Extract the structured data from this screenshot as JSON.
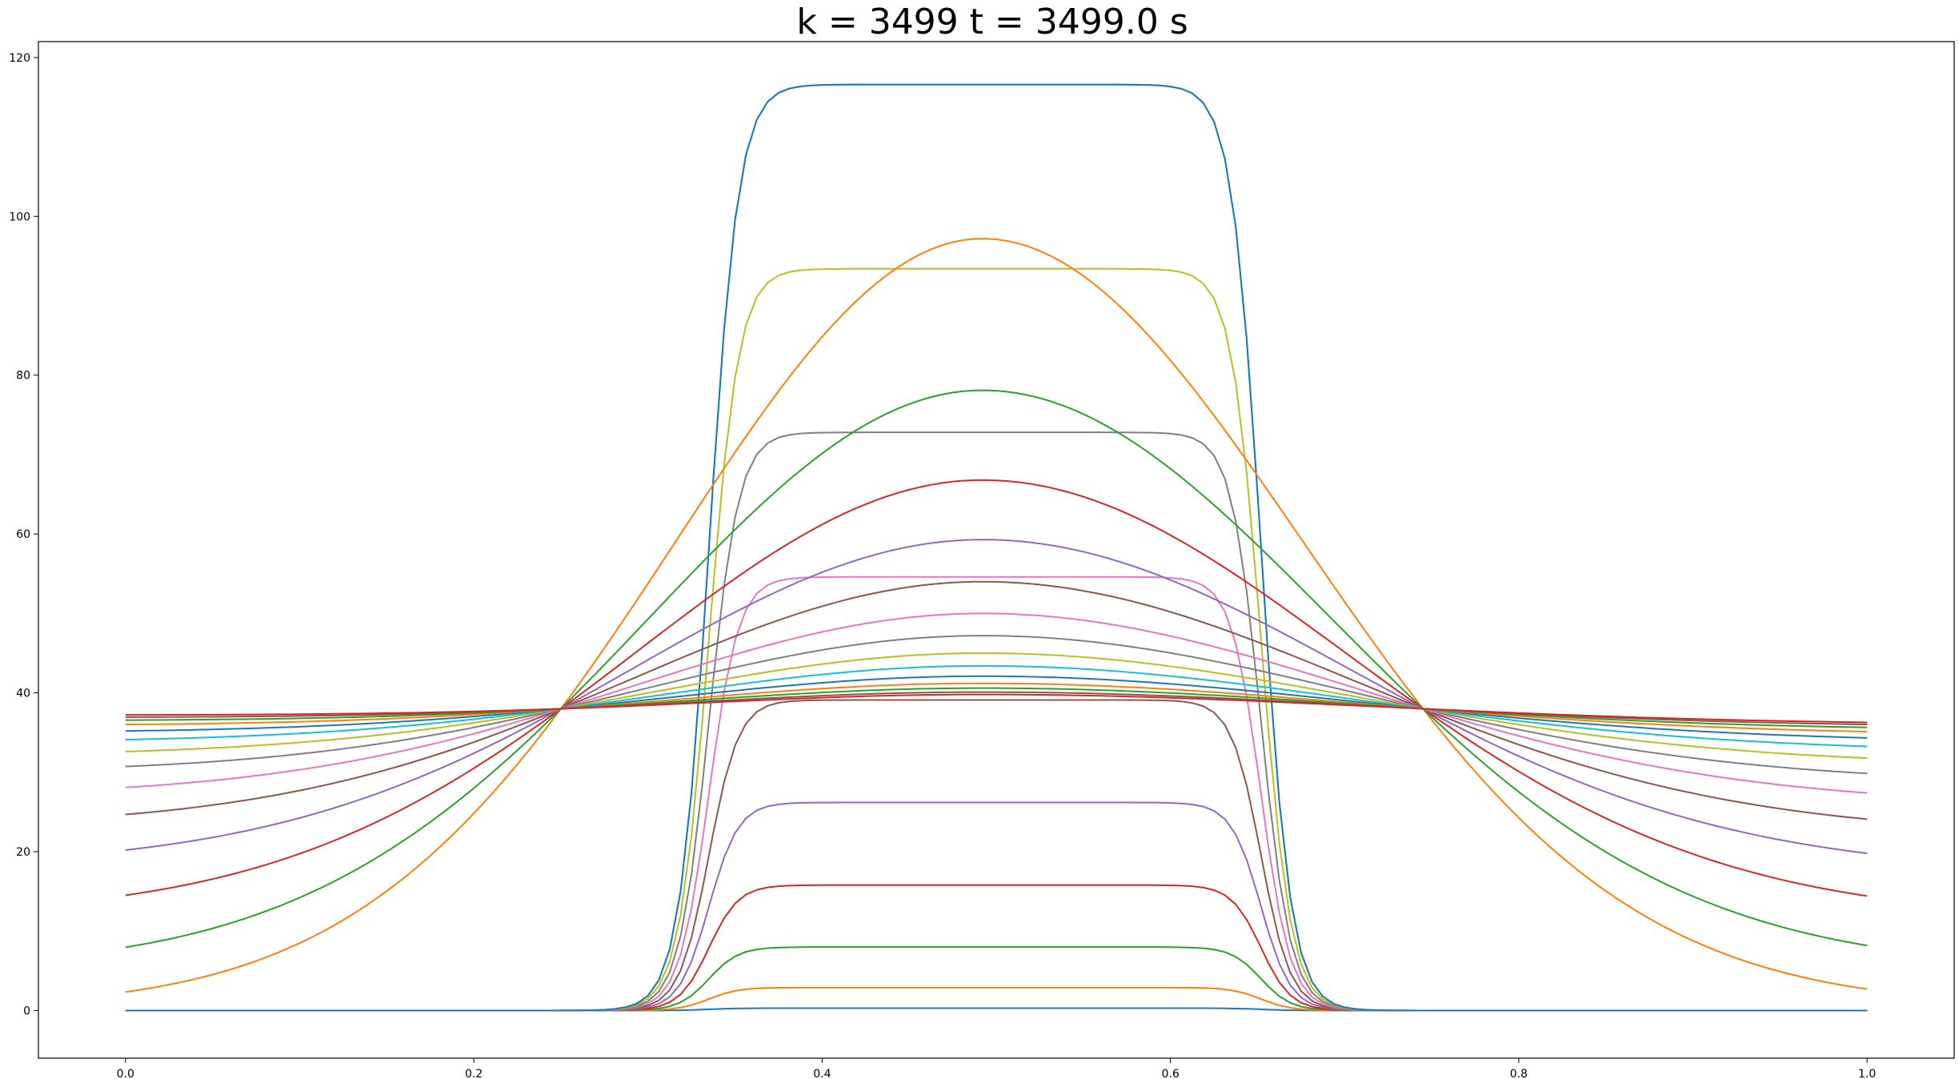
{
  "chart_data": {
    "type": "line",
    "title": "k = 3499 t = 3499.0 s",
    "xlabel": "",
    "ylabel": "",
    "xlim": [
      -0.05,
      1.05
    ],
    "ylim": [
      -6,
      122
    ],
    "x_ticks": [
      "0.0",
      "0.2",
      "0.4",
      "0.6",
      "0.8",
      "1.0"
    ],
    "y_ticks": [
      "0",
      "20",
      "40",
      "60",
      "80",
      "100",
      "120"
    ],
    "grid": false,
    "legend": "none",
    "description_of_series": "Square-pulse family: temperature plateau between x=0.335 and x=0.652 with steep edges. Smooth family: Gaussian-like profiles centered at x=0.492 relaxing toward a flat ~38 level.",
    "series": [
      {
        "kind": "pulse",
        "color": "#1f77b4",
        "plateau": 0.3
      },
      {
        "kind": "pulse",
        "color": "#ff7f0e",
        "plateau": 2.9
      },
      {
        "kind": "pulse",
        "color": "#2ca02c",
        "plateau": 8.0
      },
      {
        "kind": "pulse",
        "color": "#d62728",
        "plateau": 15.8
      },
      {
        "kind": "pulse",
        "color": "#9467bd",
        "plateau": 26.2
      },
      {
        "kind": "pulse",
        "color": "#8c564b",
        "plateau": 39.1
      },
      {
        "kind": "pulse",
        "color": "#e377c2",
        "plateau": 54.6
      },
      {
        "kind": "pulse",
        "color": "#7f7f7f",
        "plateau": 72.8
      },
      {
        "kind": "pulse",
        "color": "#bcbd22",
        "plateau": 93.4
      },
      {
        "kind": "pulse",
        "color": "#17becf",
        "plateau": 116.6
      },
      {
        "kind": "pulse",
        "color": "#1f77b4",
        "plateau": 116.6
      },
      {
        "kind": "smooth",
        "color": "#ff7f0e",
        "peak": 97.2,
        "edge": 0.4,
        "edge_right": 0.6
      },
      {
        "kind": "smooth",
        "color": "#2ca02c",
        "peak": 78.1,
        "edge": 5.3,
        "edge_right": 5.3
      },
      {
        "kind": "smooth",
        "color": "#d62728",
        "peak": 66.8,
        "edge": 12.0,
        "edge_right": 11.6
      },
      {
        "kind": "smooth",
        "color": "#9467bd",
        "peak": 59.3,
        "edge": 18.2,
        "edge_right": 17.4
      },
      {
        "kind": "smooth",
        "color": "#8c564b",
        "peak": 54.0,
        "edge": 23.2,
        "edge_right": 22.2
      },
      {
        "kind": "smooth",
        "color": "#e377c2",
        "peak": 50.0,
        "edge": 27.0,
        "edge_right": 25.9
      },
      {
        "kind": "smooth",
        "color": "#7f7f7f",
        "peak": 47.2,
        "edge": 30.0,
        "edge_right": 28.7
      },
      {
        "kind": "smooth",
        "color": "#bcbd22",
        "peak": 45.0,
        "edge": 32.1,
        "edge_right": 30.9
      },
      {
        "kind": "smooth",
        "color": "#17becf",
        "peak": 43.4,
        "edge": 33.8,
        "edge_right": 32.6
      },
      {
        "kind": "smooth",
        "color": "#1f77b4",
        "peak": 42.1,
        "edge": 35.0,
        "edge_right": 33.8
      },
      {
        "kind": "smooth",
        "color": "#ff7f0e",
        "peak": 41.2,
        "edge": 35.9,
        "edge_right": 34.7
      },
      {
        "kind": "smooth",
        "color": "#2ca02c",
        "peak": 40.6,
        "edge": 36.5,
        "edge_right": 35.3
      },
      {
        "kind": "smooth",
        "color": "#8c564b",
        "peak": 40.1,
        "edge": 36.9,
        "edge_right": 35.7
      },
      {
        "kind": "smooth",
        "color": "#d62728",
        "peak": 39.8,
        "edge": 37.2,
        "edge_right": 36.0
      }
    ]
  }
}
